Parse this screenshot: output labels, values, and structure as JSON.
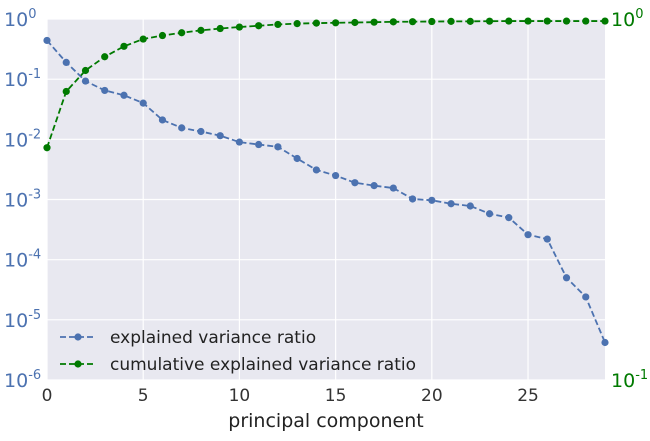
{
  "chart_data": {
    "type": "line",
    "xlabel": "principal component",
    "xlim": [
      0,
      29
    ],
    "x_ticks": [
      0,
      5,
      10,
      15,
      20,
      25
    ],
    "x": [
      0,
      1,
      2,
      3,
      4,
      5,
      6,
      7,
      8,
      9,
      10,
      11,
      12,
      13,
      14,
      15,
      16,
      17,
      18,
      19,
      20,
      21,
      22,
      23,
      24,
      25,
      26,
      27,
      28,
      29
    ],
    "left_axis": {
      "scale": "log",
      "ylim": [
        1e-06,
        1
      ],
      "tick_exponents": [
        0,
        -1,
        -2,
        -3,
        -4,
        -5,
        -6
      ],
      "tick_base": "10",
      "color": "#4c72b0"
    },
    "right_axis": {
      "scale": "log",
      "ylim": [
        0.1,
        1
      ],
      "tick_exponents": [
        0,
        -1
      ],
      "tick_base": "10",
      "color": "#007a00"
    },
    "series": [
      {
        "name": "explained variance ratio",
        "axis": "left",
        "color": "#4c72b0",
        "linestyle": "dashed",
        "marker": "circle",
        "values": [
          0.44,
          0.19,
          0.093,
          0.065,
          0.054,
          0.04,
          0.021,
          0.0155,
          0.0135,
          0.0115,
          0.009,
          0.0082,
          0.0075,
          0.0048,
          0.0031,
          0.0025,
          0.0019,
          0.0017,
          0.00155,
          0.00102,
          0.00097,
          0.00085,
          0.00078,
          0.00058,
          0.0005,
          0.00026,
          0.00022,
          5e-05,
          2.4e-05,
          4.2e-06
        ]
      },
      {
        "name": "cumulative explained variance ratio",
        "axis": "right",
        "color": "#007a00",
        "linestyle": "dashed",
        "marker": "circle",
        "values": [
          0.44,
          0.63,
          0.72,
          0.786,
          0.84,
          0.88,
          0.9,
          0.916,
          0.93,
          0.941,
          0.95,
          0.958,
          0.966,
          0.971,
          0.974,
          0.976,
          0.978,
          0.98,
          0.982,
          0.983,
          0.984,
          0.985,
          0.985,
          0.986,
          0.987,
          0.987,
          0.987,
          0.987,
          0.987,
          0.987
        ]
      }
    ],
    "grid": true,
    "legend": {
      "placement": "lower-left"
    },
    "background": "#e8e8f0"
  }
}
